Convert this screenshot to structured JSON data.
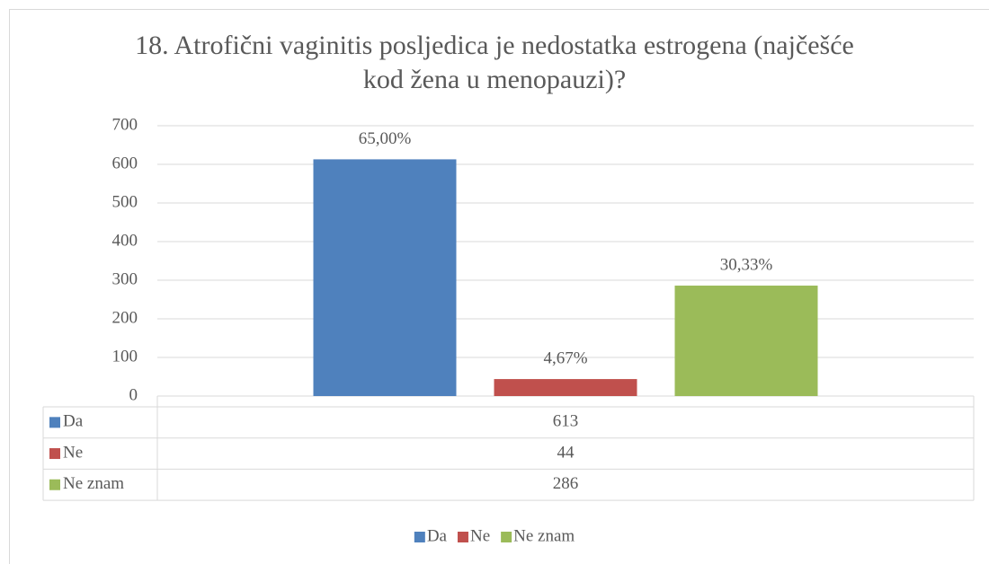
{
  "chart_data": {
    "type": "bar",
    "title": "18. Atrofični vaginitis posljedica je nedostatka estrogena (najčešće kod žena u menopauzi)?",
    "categories": [
      null
    ],
    "series": [
      {
        "name": "Da",
        "color": "#4f81bd",
        "values": [
          613
        ],
        "value_labels": [
          "65,00%"
        ]
      },
      {
        "name": "Ne",
        "color": "#c0504d",
        "values": [
          44
        ],
        "value_labels": [
          "4,67%"
        ]
      },
      {
        "name": "Ne znam",
        "color": "#9bbb59",
        "values": [
          286
        ],
        "value_labels": [
          "30,33%"
        ]
      }
    ],
    "ylim": [
      0,
      700
    ],
    "yticks": [
      0,
      100,
      200,
      300,
      400,
      500,
      600,
      700
    ],
    "grid": true,
    "data_table": true,
    "legend": "bottom"
  }
}
